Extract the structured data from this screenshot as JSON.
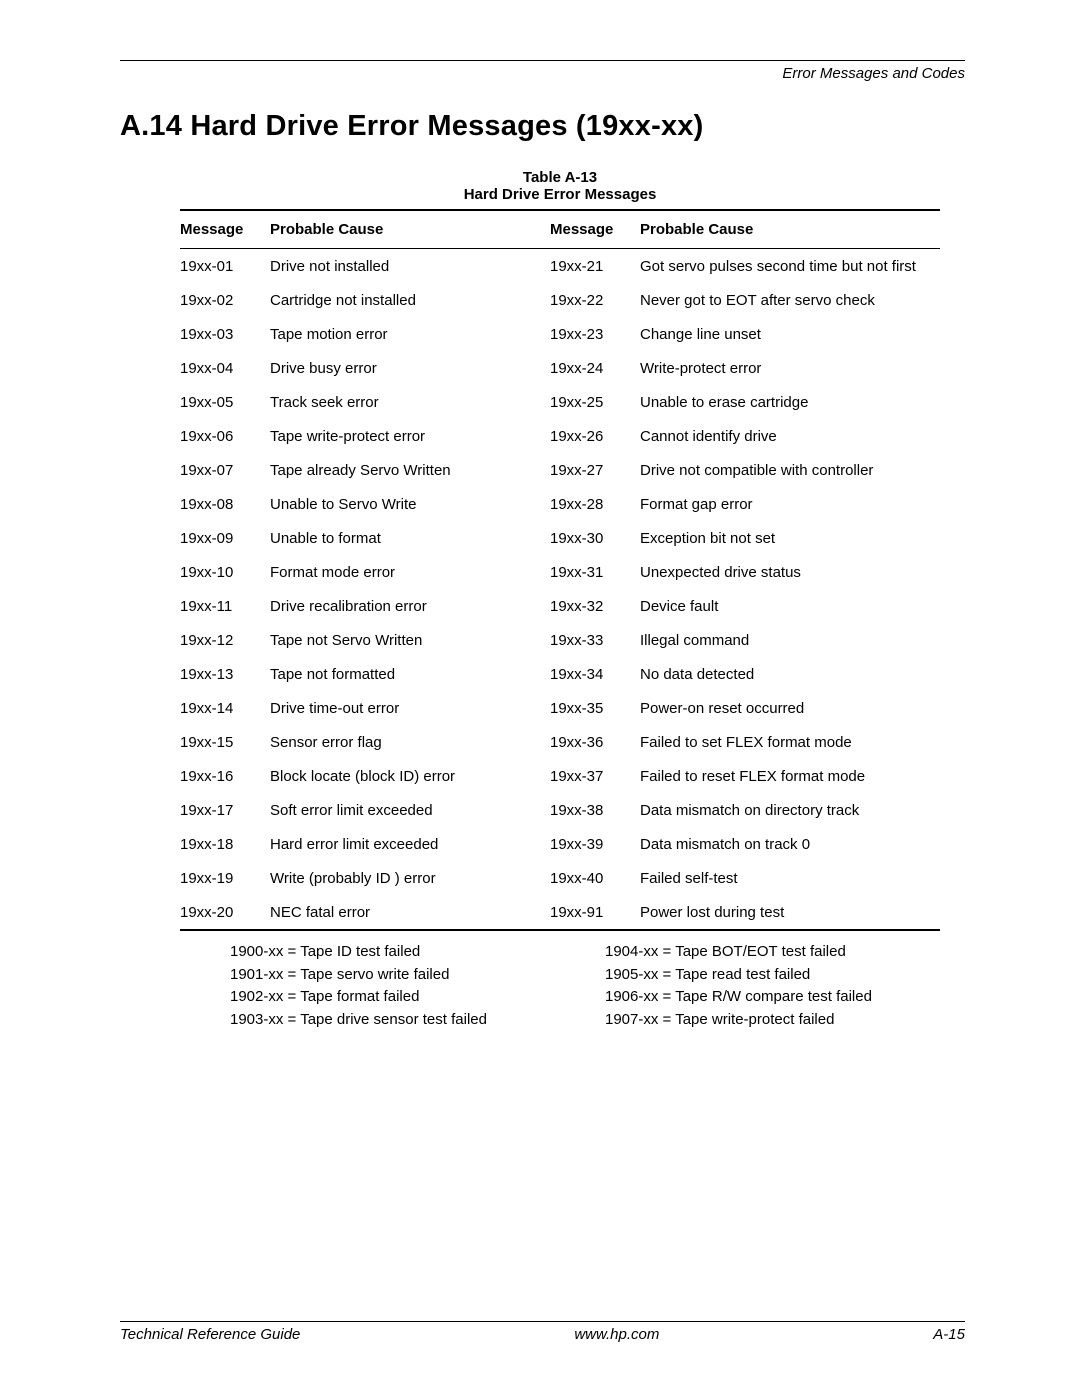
{
  "running_head": "Error Messages and Codes",
  "section_title": "A.14 Hard Drive Error Messages (19xx-xx)",
  "table": {
    "caption_a": "Table A-13",
    "caption_b": "Hard Drive Error Messages",
    "columns": [
      "Message",
      "Probable Cause",
      "Message",
      "Probable Cause"
    ],
    "rows": [
      [
        "19xx-01",
        "Drive not installed",
        "19xx-21",
        "Got servo pulses second time but not first"
      ],
      [
        "19xx-02",
        "Cartridge not installed",
        "19xx-22",
        "Never got to EOT after servo check"
      ],
      [
        "19xx-03",
        "Tape motion error",
        "19xx-23",
        "Change line unset"
      ],
      [
        "19xx-04",
        "Drive busy error",
        "19xx-24",
        "Write-protect error"
      ],
      [
        "19xx-05",
        "Track seek error",
        "19xx-25",
        "Unable to erase cartridge"
      ],
      [
        "19xx-06",
        "Tape write-protect error",
        "19xx-26",
        "Cannot identify drive"
      ],
      [
        "19xx-07",
        "Tape already Servo Written",
        "19xx-27",
        "Drive not compatible with controller"
      ],
      [
        "19xx-08",
        "Unable to Servo Write",
        "19xx-28",
        "Format gap error"
      ],
      [
        "19xx-09",
        "Unable to format",
        "19xx-30",
        "Exception bit not set"
      ],
      [
        "19xx-10",
        "Format mode error",
        "19xx-31",
        "Unexpected drive status"
      ],
      [
        "19xx-11",
        "Drive recalibration error",
        "19xx-32",
        "Device fault"
      ],
      [
        "19xx-12",
        "Tape not Servo Written",
        "19xx-33",
        "Illegal command"
      ],
      [
        "19xx-13",
        "Tape not formatted",
        "19xx-34",
        "No data detected"
      ],
      [
        "19xx-14",
        "Drive time-out error",
        "19xx-35",
        "Power-on reset occurred"
      ],
      [
        "19xx-15",
        "Sensor error flag",
        "19xx-36",
        "Failed to set FLEX format mode"
      ],
      [
        "19xx-16",
        "Block locate (block ID) error",
        "19xx-37",
        "Failed to reset FLEX format mode"
      ],
      [
        "19xx-17",
        "Soft error limit exceeded",
        "19xx-38",
        "Data mismatch on directory track"
      ],
      [
        "19xx-18",
        "Hard error limit exceeded",
        "19xx-39",
        "Data mismatch on track 0"
      ],
      [
        "19xx-19",
        "Write (probably ID ) error",
        "19xx-40",
        "Failed self-test"
      ],
      [
        "19xx-20",
        "NEC fatal error",
        "19xx-91",
        "Power lost during test"
      ]
    ]
  },
  "legend": {
    "left": [
      "1900-xx = Tape ID test failed",
      "1901-xx = Tape servo write failed",
      "1902-xx = Tape format failed",
      "1903-xx = Tape drive sensor test failed"
    ],
    "right": [
      "1904-xx = Tape BOT/EOT test failed",
      "1905-xx = Tape read test failed",
      "1906-xx = Tape R/W compare test failed",
      "1907-xx = Tape write-protect failed"
    ]
  },
  "footer": {
    "left": "Technical Reference Guide",
    "center": "www.hp.com",
    "right": "A-15"
  }
}
